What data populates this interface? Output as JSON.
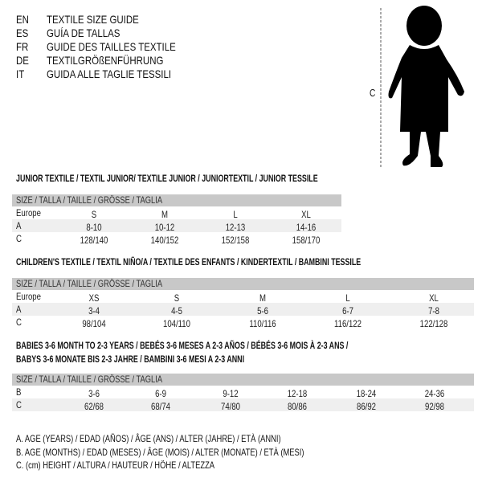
{
  "languages": [
    {
      "code": "EN",
      "title": "TEXTILE SIZE GUIDE"
    },
    {
      "code": "ES",
      "title": "GUÍA DE TALLAS"
    },
    {
      "code": "FR",
      "title": "GUIDE DES TAILLES TEXTILE"
    },
    {
      "code": "DE",
      "title": "TEXTILGRÖßENFÜHRUNG"
    },
    {
      "code": "IT",
      "title": "GUIDA ALLE TAGLIE TESSILI"
    }
  ],
  "figure": {
    "height_label": "C",
    "icon": "child-silhouette"
  },
  "size_header": "SIZE / TALLA / TAILLE / GRÖSSE / TAGLIA",
  "tables": [
    {
      "title": "JUNIOR TEXTILE / TEXTIL JUNIOR/ TEXTILE JUNIOR / JUNIORTEXTIL / JUNIOR TESSILE",
      "rows": [
        {
          "label": "Europe",
          "values": [
            "S",
            "M",
            "L",
            "XL"
          ]
        },
        {
          "label": "A",
          "values": [
            "8-10",
            "10-12",
            "12-13",
            "14-16"
          ]
        },
        {
          "label": "C",
          "values": [
            "128/140",
            "140/152",
            "152/158",
            "158/170"
          ]
        }
      ]
    },
    {
      "title": "CHILDREN'S TEXTILE / TEXTIL NIÑO/A / TEXTILE DES ENFANTS / KINDERTEXTIL / BAMBINI TESSILE",
      "rows": [
        {
          "label": "Europe",
          "values": [
            "XS",
            "S",
            "M",
            "L",
            "XL"
          ]
        },
        {
          "label": "A",
          "values": [
            "3-4",
            "4-5",
            "5-6",
            "6-7",
            "7-8"
          ]
        },
        {
          "label": "C",
          "values": [
            "98/104",
            "104/110",
            "110/116",
            "116/122",
            "122/128"
          ]
        }
      ]
    },
    {
      "title": "BABIES 3-6 MONTH TO 2-3 YEARS / BEBÉS 3-6 MESES A 2-3 AÑOS / BÉBÉS 3-6 MOIS À 2-3 ANS /",
      "title2": "BABYS 3-6 MONATE BIS 2-3 JAHRE / BAMBINI 3-6 MESI A 2-3 ANNI",
      "rows": [
        {
          "label": "B",
          "values": [
            "3-6",
            "6-9",
            "9-12",
            "12-18",
            "18-24",
            "24-36"
          ]
        },
        {
          "label": "C",
          "values": [
            "62/68",
            "68/74",
            "74/80",
            "80/86",
            "86/92",
            "92/98"
          ]
        }
      ]
    }
  ],
  "legend": [
    "A. AGE (YEARS) / EDAD (AÑOS) / ÂGE (ANS) / ALTER (JAHRE) / ETÀ (ANNI)",
    "B. AGE (MONTHS) / EDAD (MESES) / ÂGE (MOIS) / ALTER (MONATE) / ETÀ (MESI)",
    "C. (cm) HEIGHT / ALTURA / HAUTEUR / HÖHE / ALTEZZA"
  ]
}
